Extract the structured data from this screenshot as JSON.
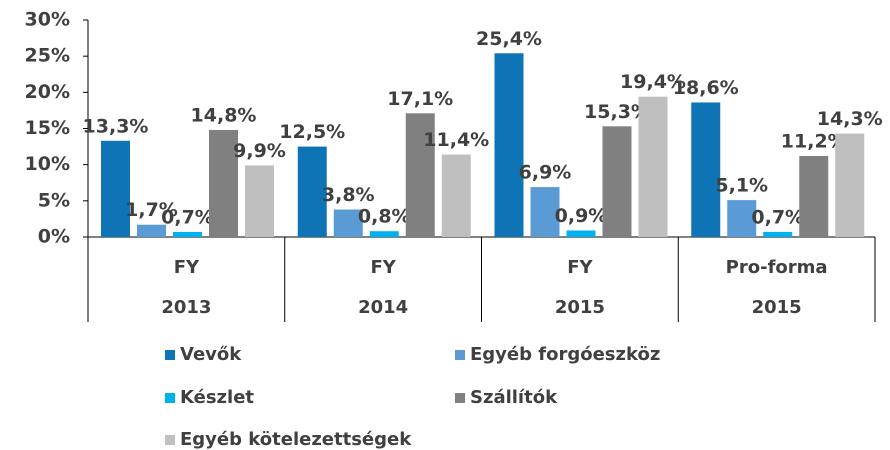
{
  "chart_data": {
    "type": "bar",
    "categories": [
      [
        "FY",
        "2013"
      ],
      [
        "FY",
        "2014"
      ],
      [
        "FY",
        "2015"
      ],
      [
        "Pro-forma",
        "2015"
      ]
    ],
    "series": [
      {
        "name": "Vevők",
        "color": "#0e74b5",
        "values": [
          13.3,
          12.5,
          25.4,
          18.6
        ],
        "value_labels": [
          "13,3%",
          "12,5%",
          "25,4%",
          "18,6%"
        ]
      },
      {
        "name": "Egyéb forgóeszköz",
        "color": "#5b9bd5",
        "values": [
          1.7,
          3.8,
          6.9,
          5.1
        ],
        "value_labels": [
          "1,7%",
          "3,8%",
          "6,9%",
          "5,1%"
        ]
      },
      {
        "name": "Készlet",
        "color": "#00b0f0",
        "values": [
          0.7,
          0.8,
          0.9,
          0.7
        ],
        "value_labels": [
          "0,7%",
          "0,8%",
          "0,9%",
          "0,7%"
        ]
      },
      {
        "name": "Szállítók",
        "color": "#808080",
        "values": [
          14.8,
          17.1,
          15.3,
          11.2
        ],
        "value_labels": [
          "14,8%",
          "17,1%",
          "15,3%",
          "11,2%"
        ]
      },
      {
        "name": "Egyéb kötelezettségek",
        "color": "#bfbfbf",
        "values": [
          9.9,
          11.4,
          19.4,
          14.3
        ],
        "value_labels": [
          "9,9%",
          "11,4%",
          "19,4%",
          "14,3%"
        ]
      }
    ],
    "ylim": [
      0,
      30
    ],
    "yticks": [
      {
        "value": 0,
        "label": "0%"
      },
      {
        "value": 5,
        "label": "5%"
      },
      {
        "value": 10,
        "label": "10%"
      },
      {
        "value": 15,
        "label": "15%"
      },
      {
        "value": 20,
        "label": "20%"
      },
      {
        "value": 25,
        "label": "25%"
      },
      {
        "value": 30,
        "label": "30%"
      }
    ]
  }
}
